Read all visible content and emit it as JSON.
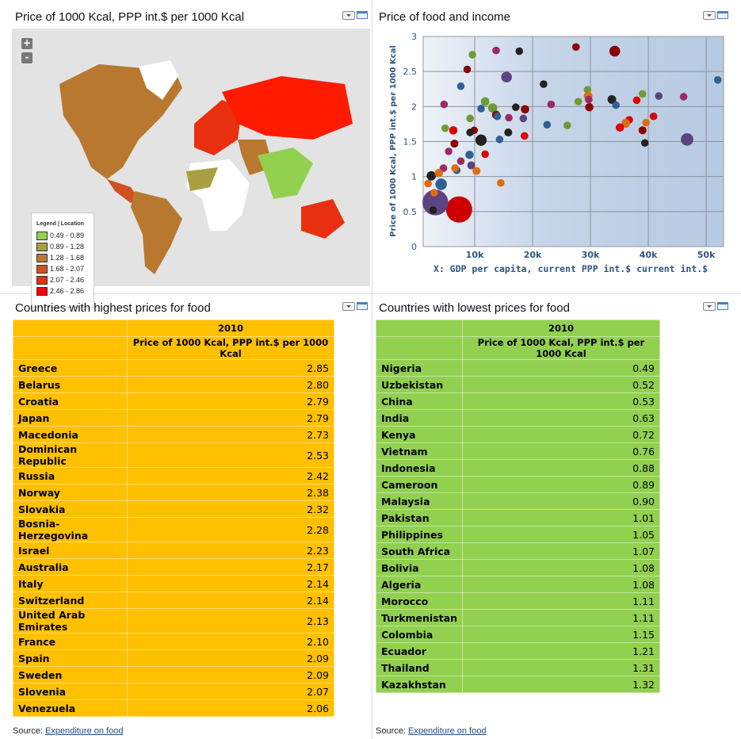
{
  "map_panel": {
    "title": "Price of 1000 Kcal, PPP int.$ per 1000 Kcal",
    "zoom_in": "+",
    "zoom_out": "-",
    "legend": {
      "header": "Legend | Location",
      "items": [
        {
          "label": "0.49 - 0.89",
          "color": "#92d050"
        },
        {
          "label": "0.89 - 1.28",
          "color": "#a8a040"
        },
        {
          "label": "1.28 - 1.68",
          "color": "#b87830"
        },
        {
          "label": "1.68 - 2.07",
          "color": "#d05020"
        },
        {
          "label": "2.07 - 2.46",
          "color": "#e83010"
        },
        {
          "label": "2.46 - 2.86",
          "color": "#ff0000"
        }
      ]
    }
  },
  "scatter_panel": {
    "title": "Price of food and income"
  },
  "chart_data": {
    "type": "scatter",
    "xlabel": "X: GDP per capita, current PPP int.$ current int.$",
    "ylabel": "Price of 1000 Kcal, PPP int.$ per 1000 Kcal",
    "xlim": [
      1100,
      53000
    ],
    "ylim": [
      0,
      3
    ],
    "xticks": [
      "10k",
      "20k",
      "30k",
      "40k",
      "50k"
    ],
    "xtick_values": [
      10000,
      20000,
      30000,
      40000,
      50000
    ],
    "yticks": [
      "0",
      "0.5",
      "1",
      "1.5",
      "2",
      "2.5",
      "3"
    ],
    "grid": true,
    "points": [
      [
        13700,
        2.8,
        1,
        "#9b2a63"
      ],
      [
        17700,
        2.79,
        1,
        "#222"
      ],
      [
        9600,
        2.74,
        1,
        "#6f9a35"
      ],
      [
        27500,
        2.85,
        1,
        "#8b0000"
      ],
      [
        34200,
        2.79,
        2,
        "#8b0000"
      ],
      [
        8700,
        2.53,
        1,
        "#8b0000"
      ],
      [
        15500,
        2.42,
        2,
        "#5c4480"
      ],
      [
        7600,
        2.29,
        1,
        "#2f6096"
      ],
      [
        21900,
        2.32,
        1,
        "#222"
      ],
      [
        52000,
        2.38,
        1,
        "#2f6096"
      ],
      [
        4700,
        2.03,
        1,
        "#9b2a63"
      ],
      [
        11800,
        2.07,
        1.3,
        "#6f9a35"
      ],
      [
        13100,
        1.98,
        1.5,
        "#6f9a35"
      ],
      [
        11100,
        1.97,
        1,
        "#2f6096"
      ],
      [
        13700,
        1.88,
        1.2,
        "#8b0000"
      ],
      [
        13900,
        1.86,
        1,
        "#2f6096"
      ],
      [
        17100,
        1.99,
        1,
        "#222"
      ],
      [
        18700,
        1.96,
        1.2,
        "#8b0000"
      ],
      [
        23200,
        2.03,
        1,
        "#9b2a63"
      ],
      [
        29500,
        2.24,
        1,
        "#6f9a35"
      ],
      [
        29600,
        2.15,
        1.3,
        "#e06a10"
      ],
      [
        29700,
        2.1,
        1,
        "#9b2a63"
      ],
      [
        29800,
        1.99,
        1.2,
        "#8b0000"
      ],
      [
        33700,
        2.1,
        1.3,
        "#222"
      ],
      [
        34400,
        2.02,
        1,
        "#2f6096"
      ],
      [
        27900,
        2.07,
        1,
        "#6f9a35"
      ],
      [
        38000,
        2.09,
        1,
        "#dd0000"
      ],
      [
        39000,
        2.18,
        1,
        "#6f9a35"
      ],
      [
        41800,
        2.15,
        1,
        "#5c4480"
      ],
      [
        46100,
        2.14,
        1,
        "#9b2a63"
      ],
      [
        9200,
        1.83,
        1,
        "#6f9a35"
      ],
      [
        15900,
        1.84,
        1,
        "#9b2a63"
      ],
      [
        18400,
        1.83,
        1,
        "#5c4480"
      ],
      [
        4900,
        1.69,
        1,
        "#6f9a35"
      ],
      [
        6300,
        1.66,
        1.2,
        "#dd0000"
      ],
      [
        9900,
        1.66,
        1,
        "#8b0000"
      ],
      [
        9200,
        1.63,
        1,
        "#222"
      ],
      [
        15800,
        1.63,
        1.1,
        "#222"
      ],
      [
        22500,
        1.74,
        1,
        "#2f6096"
      ],
      [
        26000,
        1.73,
        1,
        "#6f9a35"
      ],
      [
        36700,
        1.81,
        1,
        "#dd0000"
      ],
      [
        36100,
        1.76,
        1.3,
        "#e06a10"
      ],
      [
        35100,
        1.7,
        1.2,
        "#dd0000"
      ],
      [
        39600,
        1.77,
        1,
        "#e06a10"
      ],
      [
        40900,
        1.86,
        1,
        "#dd0000"
      ],
      [
        39000,
        1.66,
        1.1,
        "#8b0000"
      ],
      [
        39400,
        1.48,
        1,
        "#222"
      ],
      [
        46700,
        1.53,
        2.7,
        "#5c4480"
      ],
      [
        6500,
        1.47,
        1.1,
        "#8b0000"
      ],
      [
        11100,
        1.52,
        2.2,
        "#222"
      ],
      [
        14300,
        1.53,
        1,
        "#2f6096"
      ],
      [
        18600,
        1.58,
        1,
        "#dd0000"
      ],
      [
        5500,
        1.36,
        1,
        "#9b2a63"
      ],
      [
        9100,
        1.31,
        1.2,
        "#2f6096"
      ],
      [
        11800,
        1.32,
        1,
        "#dd0000"
      ],
      [
        7600,
        1.22,
        1,
        "#9b2a63"
      ],
      [
        4600,
        1.12,
        1,
        "#9b2a63"
      ],
      [
        6900,
        1.09,
        1,
        "#2f6096"
      ],
      [
        6600,
        1.12,
        1,
        "#e06a10"
      ],
      [
        9400,
        1.16,
        1.1,
        "#5c4480"
      ],
      [
        10300,
        1.08,
        1.1,
        "#e06a10"
      ],
      [
        14500,
        0.91,
        1,
        "#e06a10"
      ],
      [
        1950,
        0.9,
        1,
        "#e06a10"
      ],
      [
        4200,
        0.89,
        2.3,
        "#2f6096"
      ],
      [
        2500,
        1.01,
        1.5,
        "#222"
      ],
      [
        3800,
        1.05,
        1.2,
        "#e06a10"
      ],
      [
        7300,
        0.53,
        7,
        "#cc0000"
      ],
      [
        3200,
        0.63,
        6.8,
        "#5c4480"
      ],
      [
        3000,
        0.77,
        1,
        "#e06a10"
      ],
      [
        2800,
        0.52,
        1,
        "#222"
      ]
    ]
  },
  "high_panel": {
    "title": "Countries with highest prices for food",
    "year": "2010",
    "column": "Price of 1000 Kcal, PPP int.$ per 1000 Kcal",
    "rows": [
      [
        "Greece",
        "2.85"
      ],
      [
        "Belarus",
        "2.80"
      ],
      [
        "Croatia",
        "2.79"
      ],
      [
        "Japan",
        "2.79"
      ],
      [
        "Macedonia",
        "2.73"
      ],
      [
        "Dominican Republic",
        "2.53"
      ],
      [
        "Russia",
        "2.42"
      ],
      [
        "Norway",
        "2.38"
      ],
      [
        "Slovakia",
        "2.32"
      ],
      [
        "Bosnia-Herzegovina",
        "2.28"
      ],
      [
        "Israel",
        "2.23"
      ],
      [
        "Australia",
        "2.17"
      ],
      [
        "Italy",
        "2.14"
      ],
      [
        "Switzerland",
        "2.14"
      ],
      [
        "United Arab Emirates",
        "2.13"
      ],
      [
        "France",
        "2.10"
      ],
      [
        "Spain",
        "2.09"
      ],
      [
        "Sweden",
        "2.09"
      ],
      [
        "Slovenia",
        "2.07"
      ],
      [
        "Venezuela",
        "2.06"
      ]
    ],
    "color": "#ffc000"
  },
  "low_panel": {
    "title": "Countries with lowest prices for food",
    "year": "2010",
    "column": "Price of 1000 Kcal, PPP int.$ per 1000 Kcal",
    "rows": [
      [
        "Nigeria",
        "0.49"
      ],
      [
        "Uzbekistan",
        "0.52"
      ],
      [
        "China",
        "0.53"
      ],
      [
        "India",
        "0.63"
      ],
      [
        "Kenya",
        "0.72"
      ],
      [
        "Vietnam",
        "0.76"
      ],
      [
        "Indonesia",
        "0.88"
      ],
      [
        "Cameroon",
        "0.89"
      ],
      [
        "Malaysia",
        "0.90"
      ],
      [
        "Pakistan",
        "1.01"
      ],
      [
        "Philippines",
        "1.05"
      ],
      [
        "South Africa",
        "1.07"
      ],
      [
        "Bolivia",
        "1.08"
      ],
      [
        "Algeria",
        "1.08"
      ],
      [
        "Morocco",
        "1.11"
      ],
      [
        "Turkmenistan",
        "1.11"
      ],
      [
        "Colombia",
        "1.15"
      ],
      [
        "Ecuador",
        "1.21"
      ],
      [
        "Thailand",
        "1.31"
      ],
      [
        "Kazakhstan",
        "1.32"
      ]
    ],
    "color": "#92d050"
  },
  "source": {
    "label": "Source:",
    "link": "Expenditure on food"
  }
}
